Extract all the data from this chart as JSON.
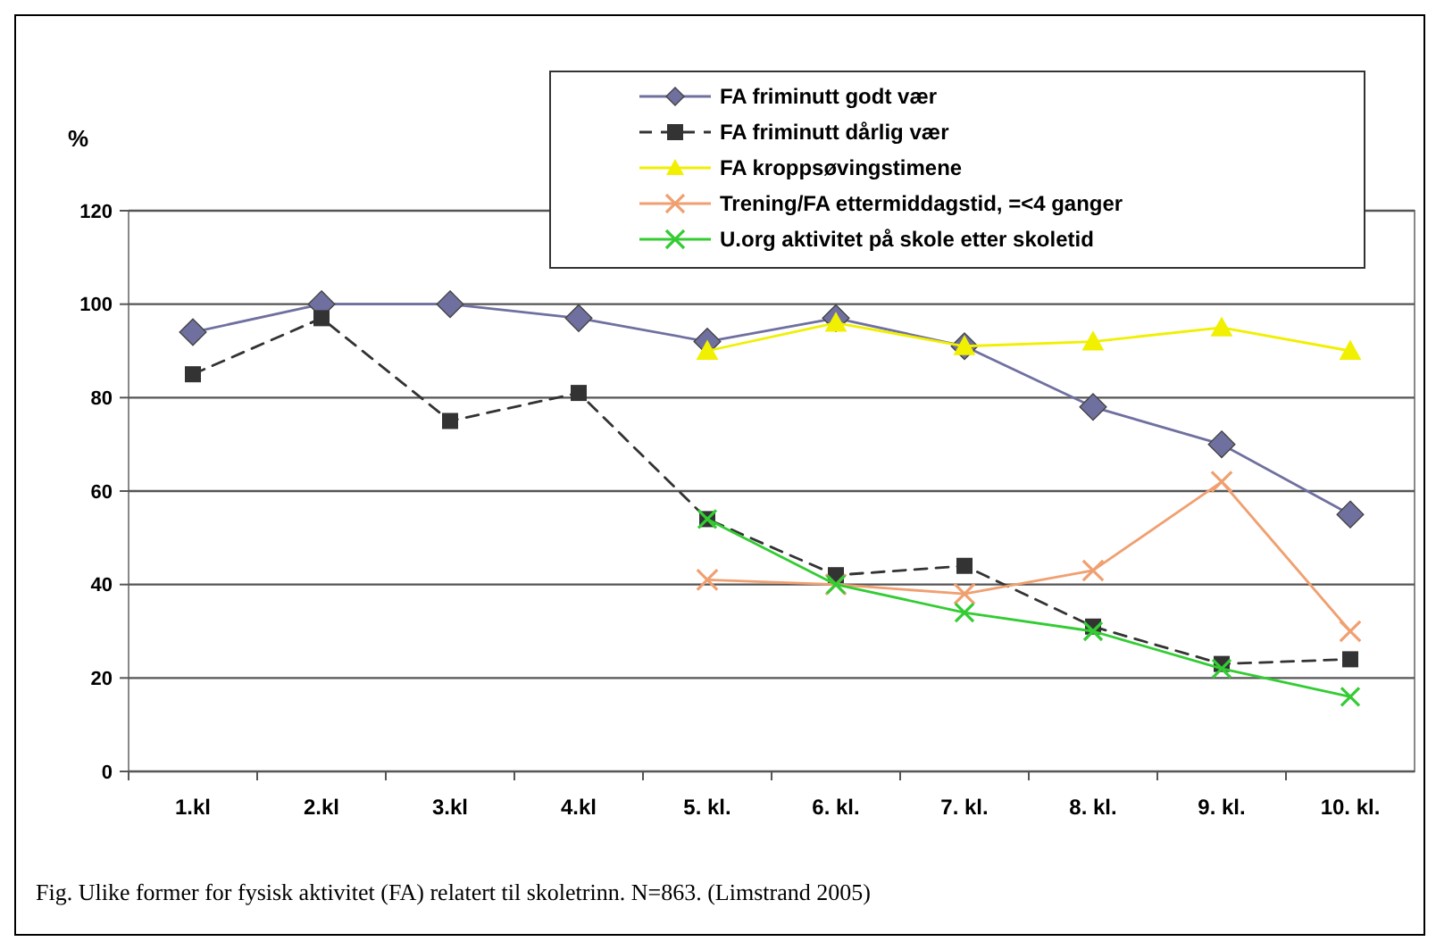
{
  "chart_data": {
    "type": "line",
    "ylabel": "%",
    "categories": [
      "1.kl",
      "2.kl",
      "3.kl",
      "4.kl",
      "5. kl.",
      "6. kl.",
      "7. kl.",
      "8. kl.",
      "9. kl.",
      "10. kl."
    ],
    "series": [
      {
        "name": "FA friminutt godt vær",
        "color": "#7070a0",
        "marker": "diamond",
        "line_style": "solid",
        "values": [
          94,
          100,
          100,
          97,
          92,
          97,
          91,
          78,
          70,
          55
        ]
      },
      {
        "name": "FA friminutt dårlig vær",
        "color": "#333333",
        "marker": "square",
        "line_style": "dashed",
        "values": [
          85,
          97,
          75,
          81,
          54,
          42,
          44,
          31,
          23,
          24
        ]
      },
      {
        "name": "FA kroppsøvingstimene",
        "color": "#f0f000",
        "marker": "triangle",
        "line_style": "solid",
        "values": [
          null,
          null,
          null,
          null,
          90,
          96,
          91,
          92,
          95,
          90
        ]
      },
      {
        "name": "Trening/FA ettermiddagstid, =<4 ganger",
        "color": "#f0a070",
        "marker": "cross",
        "line_style": "solid",
        "values": [
          null,
          null,
          null,
          null,
          41,
          40,
          38,
          43,
          62,
          30
        ]
      },
      {
        "name": "U.org aktivitet på skole etter skoletid",
        "color": "#33cc33",
        "marker": "cross",
        "line_style": "solid",
        "values": [
          null,
          null,
          null,
          null,
          54,
          40,
          34,
          30,
          22,
          16
        ]
      }
    ],
    "ylim": [
      0,
      120
    ],
    "yticks": [
      0,
      20,
      40,
      60,
      80,
      100,
      120
    ],
    "grid": "y",
    "legend": "top right",
    "annotations": [
      "Fig. Ulike former for fysisk aktivitet (FA) relatert til skoletrinn. N=863. (Limstrand 2005)"
    ]
  }
}
